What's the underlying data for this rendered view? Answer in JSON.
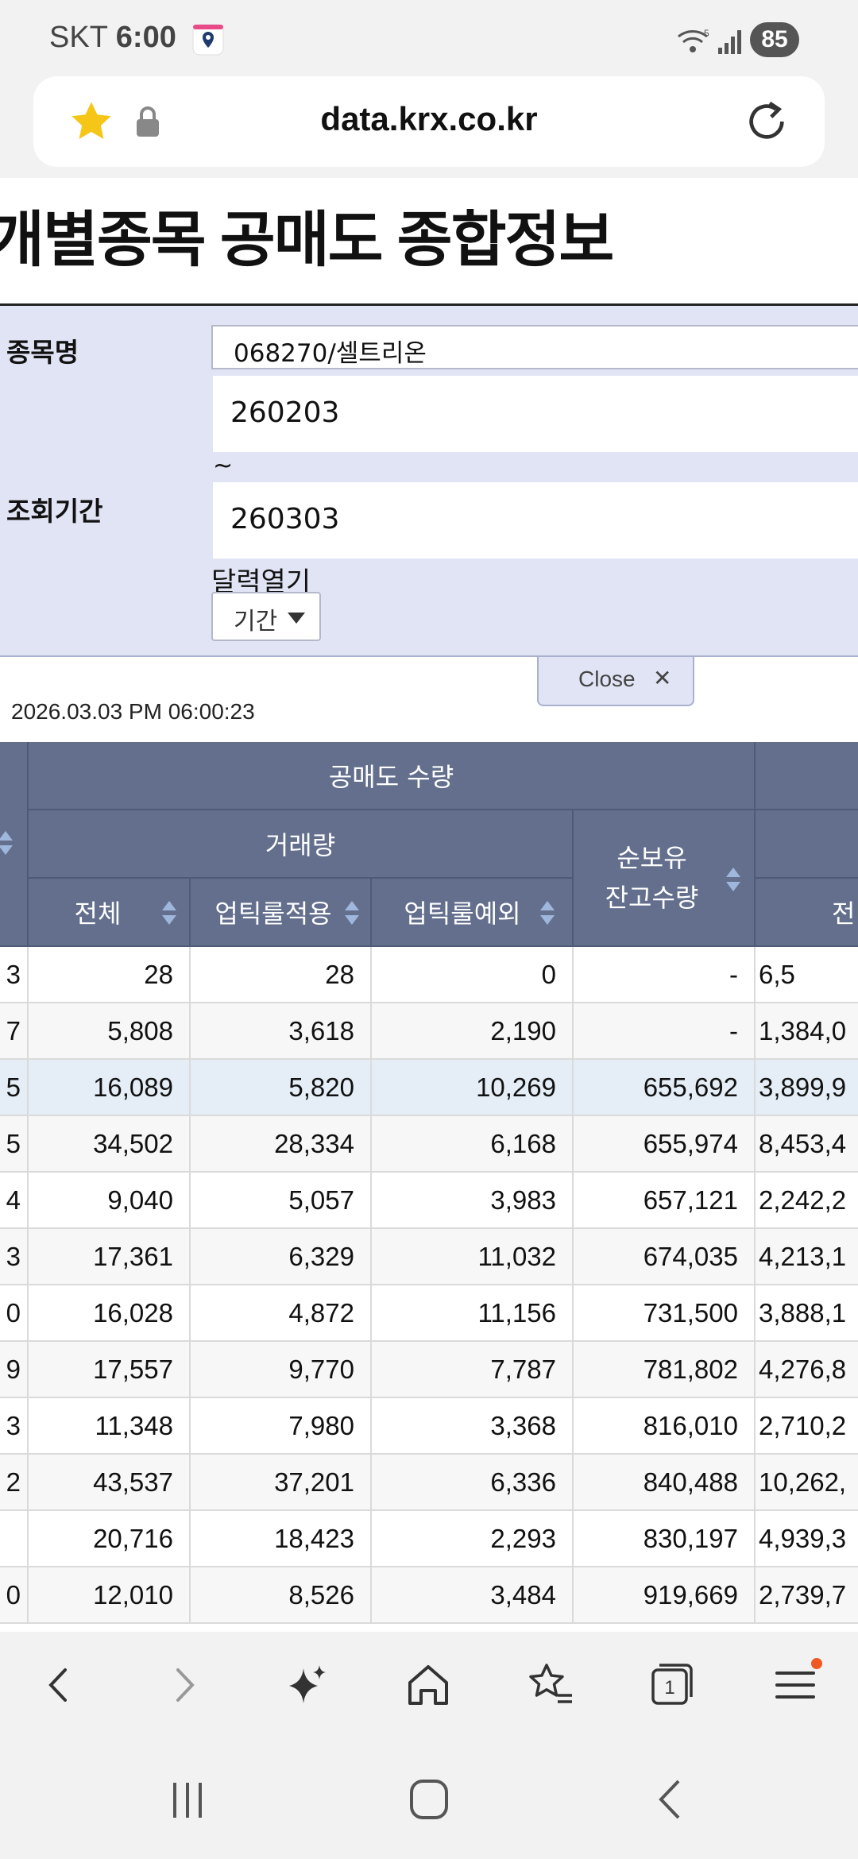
{
  "status_bar": {
    "carrier": "SKT",
    "time": "6:00",
    "battery": "85"
  },
  "browser": {
    "url": "data.krx.co.kr"
  },
  "page": {
    "title": "개별종목 공매도 종합정보",
    "form": {
      "stock_label": "종목명",
      "stock_value": "068270/셀트리온",
      "period_label": "조회기간",
      "start_date": "260203",
      "tilde": "~",
      "end_date": "260303",
      "calendar_open": "달력열기",
      "period_select": "기간"
    },
    "close_label": "Close",
    "timestamp": "2026.03.03 PM 06:00:23"
  },
  "table": {
    "group_header": "공매도 수량",
    "subgroup_header": "거래량",
    "columns": [
      "전체",
      "업틱룰적용",
      "업틱룰예외",
      "순보유\n잔고수량",
      "전"
    ],
    "rows": [
      {
        "lead": "3",
        "total": "28",
        "uptick": "28",
        "exempt": "0",
        "balance": "-",
        "next": "6,5"
      },
      {
        "lead": "7",
        "total": "5,808",
        "uptick": "3,618",
        "exempt": "2,190",
        "balance": "-",
        "next": "1,384,0"
      },
      {
        "lead": "5",
        "total": "16,089",
        "uptick": "5,820",
        "exempt": "10,269",
        "balance": "655,692",
        "next": "3,899,9"
      },
      {
        "lead": "5",
        "total": "34,502",
        "uptick": "28,334",
        "exempt": "6,168",
        "balance": "655,974",
        "next": "8,453,4"
      },
      {
        "lead": "4",
        "total": "9,040",
        "uptick": "5,057",
        "exempt": "3,983",
        "balance": "657,121",
        "next": "2,242,2"
      },
      {
        "lead": "3",
        "total": "17,361",
        "uptick": "6,329",
        "exempt": "11,032",
        "balance": "674,035",
        "next": "4,213,1"
      },
      {
        "lead": "0",
        "total": "16,028",
        "uptick": "4,872",
        "exempt": "11,156",
        "balance": "731,500",
        "next": "3,888,1"
      },
      {
        "lead": "9",
        "total": "17,557",
        "uptick": "9,770",
        "exempt": "7,787",
        "balance": "781,802",
        "next": "4,276,8"
      },
      {
        "lead": "3",
        "total": "11,348",
        "uptick": "7,980",
        "exempt": "3,368",
        "balance": "816,010",
        "next": "2,710,2"
      },
      {
        "lead": "2",
        "total": "43,537",
        "uptick": "37,201",
        "exempt": "6,336",
        "balance": "840,488",
        "next": "10,262,"
      },
      {
        "lead": "",
        "total": "20,716",
        "uptick": "18,423",
        "exempt": "2,293",
        "balance": "830,197",
        "next": "4,939,3"
      },
      {
        "lead": "0",
        "total": "12,010",
        "uptick": "8,526",
        "exempt": "3,484",
        "balance": "919,669",
        "next": "2,739,7"
      }
    ]
  },
  "bottom_nav": [
    "back-icon",
    "forward-icon",
    "ai-sparkle-icon",
    "home-icon",
    "bookmarks-icon",
    "tabs-icon",
    "menu-icon"
  ],
  "tabs_count": "1",
  "colors": {
    "header_bg": "#636f8d",
    "form_bg": "#e1e4f4",
    "selected_row": "#e5eef6",
    "star": "#f5c518",
    "notify_dot": "#f05a22"
  }
}
